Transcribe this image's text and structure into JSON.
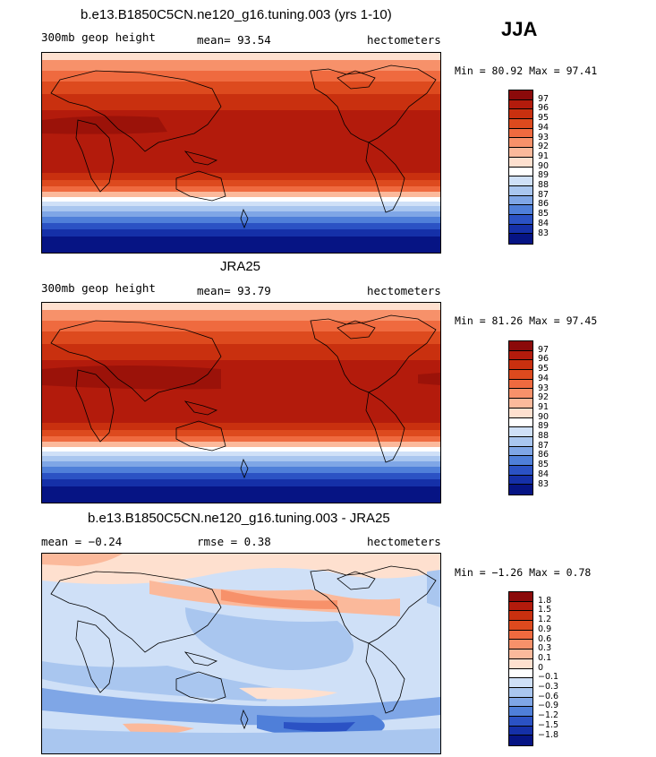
{
  "season": "JJA",
  "panels": [
    {
      "title": "b.e13.B1850C5CN.ne120_g16.tuning.003 (yrs 1-10)",
      "left_label": "300mb geop height",
      "center_label": "mean=  93.54",
      "right_label": "hectometers",
      "minmax": "Min =  80.92 Max =  97.41",
      "legend_labels": [
        "97",
        "96",
        "95",
        "94",
        "93",
        "92",
        "91",
        "90",
        "89",
        "88",
        "87",
        "86",
        "85",
        "84",
        "83"
      ],
      "legend_colors": [
        "#8b0a0a",
        "#b31b0c",
        "#c9300f",
        "#dd4a1e",
        "#ef6a3f",
        "#f7916a",
        "#fbb99b",
        "#fee0cf",
        "#ffffff",
        "#cfe0f7",
        "#a9c6ef",
        "#7fa6e6",
        "#4f7fd9",
        "#2b52c4",
        "#1530a8",
        "#061484"
      ],
      "tint": "#c13a1d"
    },
    {
      "title": "JRA25",
      "left_label": "300mb geop height",
      "center_label": "mean=  93.79",
      "right_label": "hectometers",
      "minmax": "Min =  81.26 Max =  97.45",
      "legend_labels": [
        "97",
        "96",
        "95",
        "94",
        "93",
        "92",
        "91",
        "90",
        "89",
        "88",
        "87",
        "86",
        "85",
        "84",
        "83"
      ],
      "legend_colors": [
        "#8b0a0a",
        "#b31b0c",
        "#c9300f",
        "#dd4a1e",
        "#ef6a3f",
        "#f7916a",
        "#fbb99b",
        "#fee0cf",
        "#ffffff",
        "#cfe0f7",
        "#a9c6ef",
        "#7fa6e6",
        "#4f7fd9",
        "#2b52c4",
        "#1530a8",
        "#061484"
      ],
      "tint": "#c13a1d"
    },
    {
      "title": "b.e13.B1850C5CN.ne120_g16.tuning.003 - JRA25",
      "left_label": "mean =  −0.24",
      "center_label": "rmse =   0.38",
      "right_label": "hectometers",
      "minmax": "Min =  −1.26 Max =   0.78",
      "legend_labels": [
        "1.8",
        "1.5",
        "1.2",
        "0.9",
        "0.6",
        "0.3",
        "0.1",
        "0",
        "−0.1",
        "−0.3",
        "−0.6",
        "−0.9",
        "−1.2",
        "−1.5",
        "−1.8"
      ],
      "legend_colors": [
        "#8b0a0a",
        "#b31b0c",
        "#c9300f",
        "#dd4a1e",
        "#ef6a3f",
        "#f7916a",
        "#fbb99b",
        "#fee0cf",
        "#ffffff",
        "#cfe0f7",
        "#a9c6ef",
        "#7fa6e6",
        "#4f7fd9",
        "#2b52c4",
        "#1530a8",
        "#061484"
      ],
      "tint": "#a9c6ef"
    }
  ]
}
